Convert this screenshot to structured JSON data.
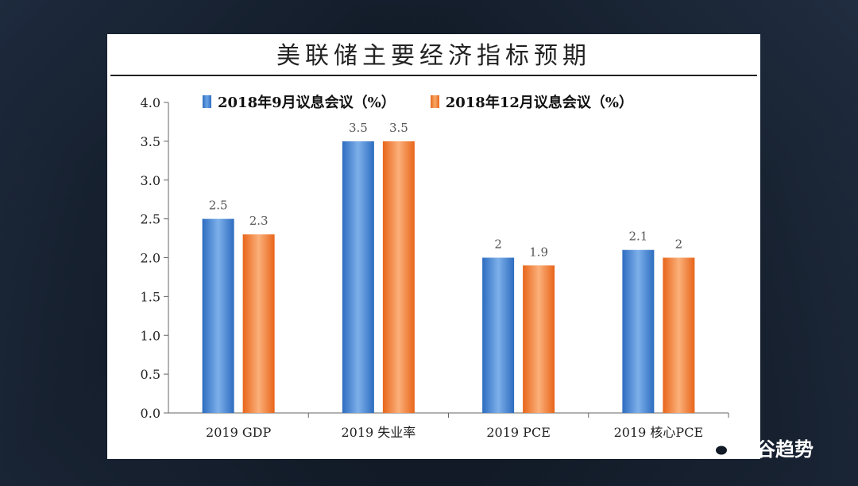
{
  "watermark": {
    "text": "智谷趋势",
    "icon": "wechat-icon"
  },
  "colors": {
    "series1": "#3c7fd4",
    "series2": "#f07c30",
    "axis": "#666666",
    "text": "#222222"
  },
  "chart_data": {
    "type": "bar",
    "title": "美联储主要经济指标预期",
    "categories": [
      "2019 GDP",
      "2019 失业率",
      "2019 PCE",
      "2019 核心PCE"
    ],
    "series": [
      {
        "name": "2018年9月议息会议（%）",
        "values": [
          2.5,
          3.5,
          2,
          2.1
        ],
        "labels": [
          "2.5",
          "3.5",
          "2",
          "2.1"
        ]
      },
      {
        "name": "2018年12月议息会议（%）",
        "values": [
          2.3,
          3.5,
          1.9,
          2
        ],
        "labels": [
          "2.3",
          "3.5",
          "1.9",
          "2"
        ]
      }
    ],
    "ylim": [
      0,
      4
    ],
    "yticks": [
      "0.0",
      "0.5",
      "1.0",
      "1.5",
      "2.0",
      "2.5",
      "3.0",
      "3.5",
      "4.0"
    ],
    "xlabel": "",
    "ylabel": "",
    "legend_position": "top",
    "grid": false
  }
}
